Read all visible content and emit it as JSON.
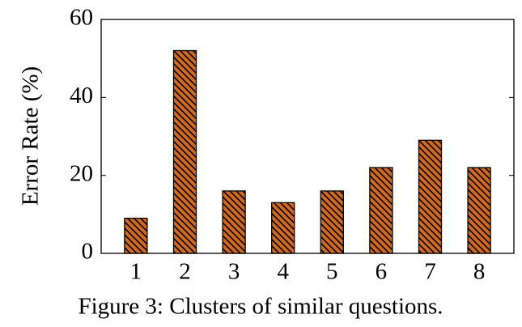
{
  "chart_data": {
    "type": "bar",
    "y_label": "Error Rate (%)",
    "caption": "Figure 3: Clusters of similar questions.",
    "categories": [
      "1",
      "2",
      "3",
      "4",
      "5",
      "6",
      "7",
      "8"
    ],
    "values": [
      9,
      52,
      16,
      13,
      16,
      22,
      29,
      22
    ],
    "color": "#d2691e",
    "hatch": true,
    "ylim": [
      0,
      60
    ],
    "yticks": [
      0,
      20,
      40,
      60
    ],
    "grid": false
  }
}
